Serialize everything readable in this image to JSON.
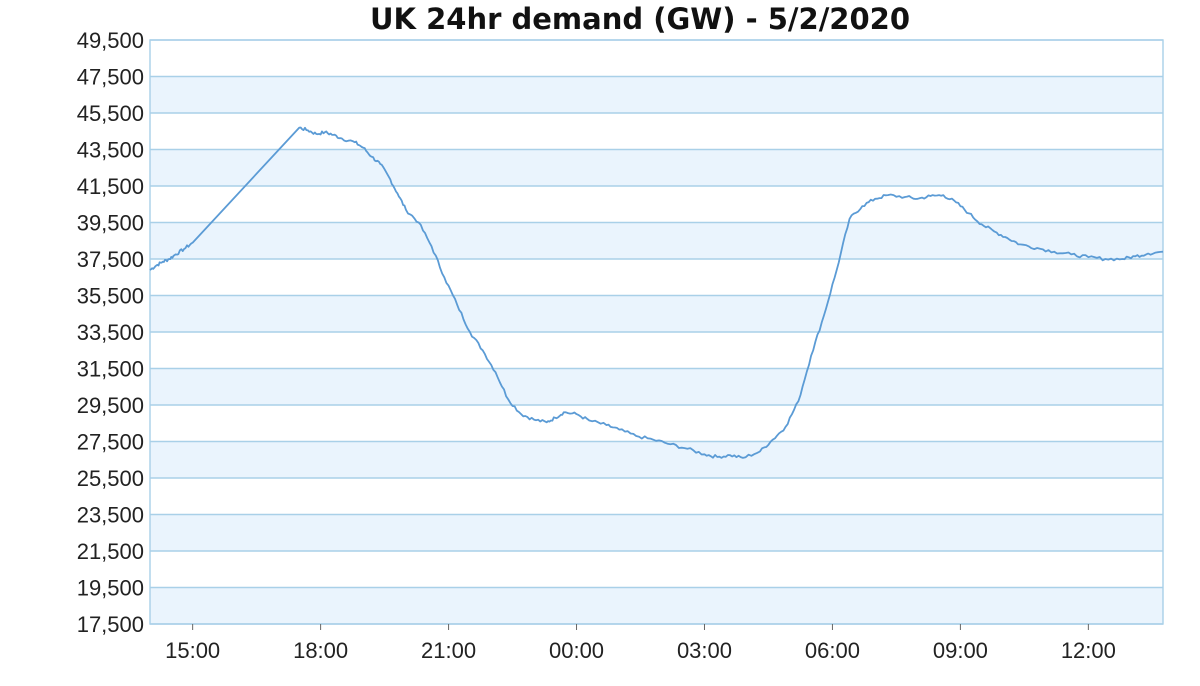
{
  "chart_data": {
    "type": "line",
    "title": "UK 24hr demand (GW) - 5/2/2020",
    "xlabel": "",
    "ylabel": "",
    "ylim": [
      17500,
      49500
    ],
    "x_domain": [
      "14:00",
      "13:45"
    ],
    "x_unit": "hours since 14:00",
    "x_range": [
      0,
      23.75
    ],
    "yticks": [
      "49,500",
      "47,500",
      "45,500",
      "43,500",
      "41,500",
      "39,500",
      "37,500",
      "35,500",
      "33,500",
      "31,500",
      "29,500",
      "27,500",
      "25,500",
      "23,500",
      "21,500",
      "19,500",
      "17,500"
    ],
    "xticks": [
      {
        "label": "15:00",
        "x": 1
      },
      {
        "label": "18:00",
        "x": 4
      },
      {
        "label": "21:00",
        "x": 7
      },
      {
        "label": "00:00",
        "x": 10
      },
      {
        "label": "03:00",
        "x": 13
      },
      {
        "label": "06:00",
        "x": 16
      },
      {
        "label": "09:00",
        "x": 19
      },
      {
        "label": "12:00",
        "x": 22
      }
    ],
    "grid": true,
    "line_color": "#5b9bd5",
    "band_color": "#eaf4fd",
    "grid_color": "#a9d0e8",
    "series": [
      {
        "name": "",
        "points": [
          [
            0.0,
            36900
          ],
          [
            0.15,
            37150
          ],
          [
            0.3,
            37350
          ],
          [
            0.45,
            37500
          ],
          [
            0.6,
            37750
          ],
          [
            0.8,
            38050
          ],
          [
            1.0,
            38400
          ],
          [
            3.5,
            44700
          ],
          [
            3.7,
            44550
          ],
          [
            3.9,
            44350
          ],
          [
            4.1,
            44450
          ],
          [
            4.3,
            44300
          ],
          [
            4.5,
            44100
          ],
          [
            4.8,
            43900
          ],
          [
            5.0,
            43600
          ],
          [
            5.2,
            43100
          ],
          [
            5.4,
            42700
          ],
          [
            5.6,
            42000
          ],
          [
            5.8,
            41100
          ],
          [
            6.0,
            40200
          ],
          [
            6.3,
            39500
          ],
          [
            6.6,
            38200
          ],
          [
            6.9,
            36500
          ],
          [
            7.2,
            35000
          ],
          [
            7.5,
            33500
          ],
          [
            7.8,
            32500
          ],
          [
            8.1,
            31300
          ],
          [
            8.4,
            29800
          ],
          [
            8.7,
            29000
          ],
          [
            9.0,
            28700
          ],
          [
            9.3,
            28550
          ],
          [
            9.5,
            28800
          ],
          [
            9.7,
            29100
          ],
          [
            10.0,
            29000
          ],
          [
            10.3,
            28650
          ],
          [
            10.7,
            28400
          ],
          [
            11.0,
            28150
          ],
          [
            11.4,
            27800
          ],
          [
            11.8,
            27600
          ],
          [
            12.2,
            27350
          ],
          [
            12.6,
            27100
          ],
          [
            13.0,
            26800
          ],
          [
            13.3,
            26650
          ],
          [
            13.6,
            26750
          ],
          [
            13.9,
            26600
          ],
          [
            14.3,
            26950
          ],
          [
            14.6,
            27600
          ],
          [
            14.9,
            28300
          ],
          [
            15.2,
            29700
          ],
          [
            15.5,
            32200
          ],
          [
            15.8,
            34400
          ],
          [
            16.1,
            36900
          ],
          [
            16.4,
            39700
          ],
          [
            16.7,
            40400
          ],
          [
            17.0,
            40800
          ],
          [
            17.3,
            41000
          ],
          [
            17.7,
            40900
          ],
          [
            18.0,
            40800
          ],
          [
            18.3,
            40950
          ],
          [
            18.6,
            41000
          ],
          [
            18.9,
            40600
          ],
          [
            19.2,
            40000
          ],
          [
            19.5,
            39400
          ],
          [
            19.8,
            39000
          ],
          [
            20.1,
            38650
          ],
          [
            20.4,
            38300
          ],
          [
            20.8,
            38100
          ],
          [
            21.2,
            37900
          ],
          [
            21.6,
            37750
          ],
          [
            22.0,
            37600
          ],
          [
            22.4,
            37500
          ],
          [
            22.8,
            37500
          ],
          [
            23.1,
            37650
          ],
          [
            23.4,
            37800
          ],
          [
            23.75,
            37900
          ]
        ]
      }
    ]
  }
}
